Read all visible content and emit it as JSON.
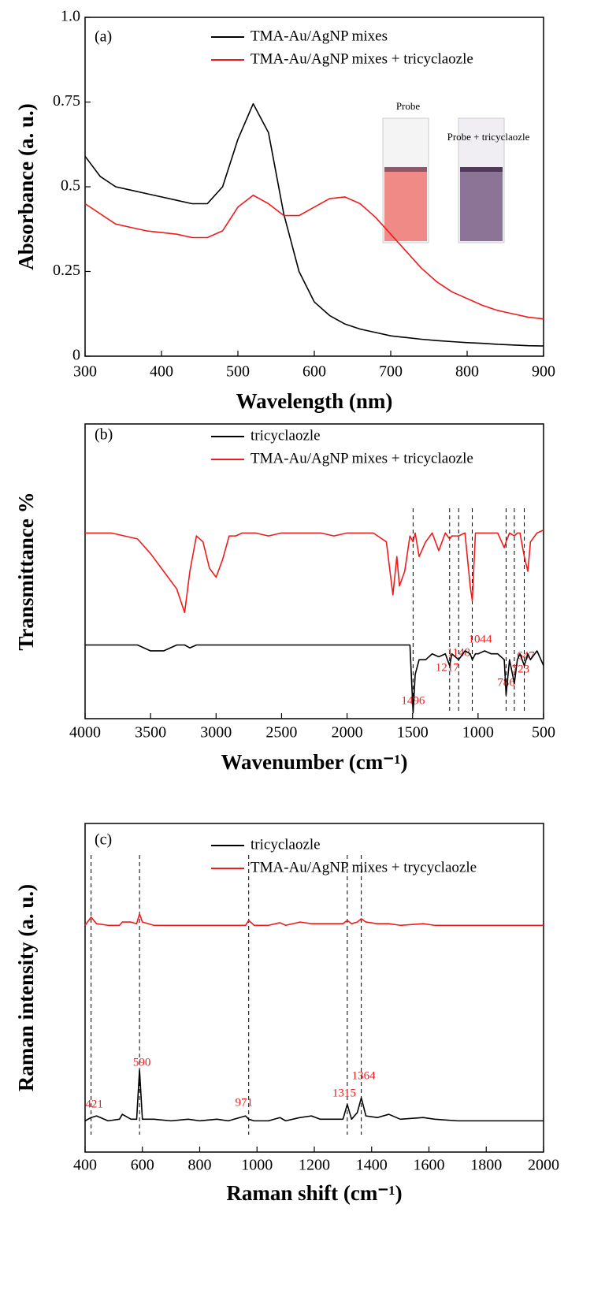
{
  "chart_data": [
    {
      "type": "line",
      "panel_label": "(a)",
      "xlabel": "Wavelength (nm)",
      "ylabel": "Absorbance (a. u.)",
      "inset_labels": [
        "Probe",
        "Probe + tricyclaozle"
      ],
      "xlim": [
        300,
        900
      ],
      "ylim": [
        0,
        1
      ],
      "xticks": [
        300,
        400,
        500,
        600,
        700,
        800,
        900
      ],
      "yticks": [
        0,
        0.25,
        0.5,
        0.75,
        {
          "value": 1,
          "label": "1.0"
        }
      ],
      "x": [
        300,
        320,
        340,
        360,
        380,
        400,
        420,
        440,
        460,
        480,
        500,
        520,
        540,
        560,
        580,
        600,
        620,
        640,
        660,
        680,
        700,
        720,
        740,
        760,
        780,
        800,
        820,
        840,
        860,
        880,
        900
      ],
      "series": [
        {
          "name": "TMA-Au/AgNP mixes",
          "color": "#000000",
          "values": [
            0.59,
            0.53,
            0.5,
            0.49,
            0.48,
            0.47,
            0.46,
            0.45,
            0.45,
            0.5,
            0.64,
            0.745,
            0.66,
            0.42,
            0.25,
            0.16,
            0.12,
            0.095,
            0.08,
            0.07,
            0.06,
            0.055,
            0.05,
            0.046,
            0.043,
            0.04,
            0.038,
            0.035,
            0.033,
            0.031,
            0.03
          ]
        },
        {
          "name": "TMA-Au/AgNP mixes + tricyclaozle",
          "color": "#ee1c1c",
          "values": [
            0.45,
            0.42,
            0.39,
            0.38,
            0.37,
            0.365,
            0.36,
            0.35,
            0.35,
            0.37,
            0.44,
            0.475,
            0.45,
            0.415,
            0.415,
            0.44,
            0.465,
            0.47,
            0.45,
            0.41,
            0.36,
            0.31,
            0.26,
            0.22,
            0.19,
            0.17,
            0.15,
            0.135,
            0.125,
            0.115,
            0.11
          ]
        }
      ]
    },
    {
      "type": "line",
      "panel_label": "(b)",
      "xlabel": "Wavenumber (cm⁻¹)",
      "ylabel": "Transmittance %",
      "xlim": [
        4000,
        500
      ],
      "ylim": [
        0,
        100
      ],
      "xticks": [
        4000,
        3500,
        3000,
        2500,
        2000,
        1500,
        1000,
        500
      ],
      "peaks": [
        1496,
        1217,
        1148,
        1044,
        786,
        723,
        647
      ],
      "peak_color": "#ee1c1c",
      "x": [
        4000,
        3800,
        3700,
        3600,
        3500,
        3400,
        3300,
        3240,
        3200,
        3150,
        3100,
        3050,
        3000,
        2950,
        2900,
        2850,
        2800,
        2700,
        2600,
        2500,
        2400,
        2300,
        2200,
        2100,
        2000,
        1900,
        1800,
        1700,
        1650,
        1620,
        1600,
        1560,
        1520,
        1496,
        1480,
        1450,
        1400,
        1350,
        1300,
        1250,
        1217,
        1200,
        1148,
        1100,
        1060,
        1044,
        1020,
        1000,
        950,
        900,
        850,
        800,
        786,
        760,
        723,
        700,
        680,
        647,
        620,
        600,
        550,
        500
      ],
      "series": [
        {
          "name": "tricyclaozle",
          "color": "#000000",
          "values": [
            25,
            25,
            25,
            25,
            23,
            23,
            25,
            25,
            24,
            25,
            25,
            25,
            25,
            25,
            25,
            25,
            25,
            25,
            25,
            25,
            25,
            25,
            25,
            25,
            25,
            25,
            25,
            25,
            25,
            25,
            25,
            25,
            25,
            2,
            15,
            20,
            20,
            22,
            21,
            22,
            18,
            22,
            20,
            23,
            22,
            20,
            22,
            22,
            23,
            22,
            22,
            20,
            8,
            20,
            12,
            20,
            22,
            18,
            22,
            20,
            23,
            18
          ]
        },
        {
          "name": "TMA-Au/AgNP mixes + tricyclaozle",
          "color": "#ee1c1c",
          "values": [
            63,
            63,
            62,
            61,
            56,
            50,
            44,
            36,
            50,
            62,
            60,
            51,
            48,
            54,
            62,
            62,
            63,
            63,
            62,
            63,
            63,
            63,
            63,
            62,
            63,
            63,
            63,
            60,
            42,
            55,
            45,
            50,
            62,
            60,
            63,
            55,
            60,
            63,
            57,
            63,
            61,
            62,
            62,
            63,
            45,
            40,
            63,
            63,
            63,
            63,
            63,
            58,
            60,
            63,
            62,
            63,
            63,
            55,
            50,
            60,
            63,
            64
          ]
        }
      ]
    },
    {
      "type": "line",
      "panel_label": "(c)",
      "xlabel": "Raman shift (cm⁻¹)",
      "ylabel": "Raman intensity (a. u.)",
      "xlim": [
        400,
        2000
      ],
      "ylim": [
        0,
        100
      ],
      "xticks": [
        400,
        600,
        800,
        1000,
        1200,
        1400,
        1600,
        1800,
        2000
      ],
      "peaks": [
        421,
        590,
        971,
        1315,
        1364
      ],
      "peak_color": "#ee1c1c",
      "x": [
        400,
        421,
        440,
        480,
        520,
        530,
        560,
        580,
        590,
        600,
        640,
        700,
        760,
        800,
        860,
        900,
        960,
        971,
        990,
        1040,
        1080,
        1100,
        1150,
        1190,
        1220,
        1260,
        1300,
        1315,
        1330,
        1350,
        1364,
        1380,
        1420,
        1460,
        1500,
        1580,
        1620,
        1700,
        1800,
        1900,
        2000
      ],
      "series": [
        {
          "name": "tricyclaozle",
          "color": "#000000",
          "values": [
            9.5,
            10.5,
            11,
            9.5,
            10,
            11.5,
            10,
            10,
            25,
            10,
            10,
            9.5,
            10,
            9.5,
            10,
            9.5,
            11,
            10,
            9.5,
            9.5,
            10.5,
            9.5,
            10.5,
            11,
            10,
            10,
            10,
            14.5,
            10,
            12,
            16.5,
            11,
            10.5,
            11.5,
            10,
            10.5,
            10,
            9.5,
            9.5,
            9.5,
            9.5
          ]
        },
        {
          "name": "TMA-Au/AgNP mixes + trycyclaozle",
          "color": "#ee1c1c",
          "values": [
            69,
            71.5,
            69.5,
            69,
            69,
            70,
            70,
            69.5,
            72.5,
            70,
            69,
            69,
            69,
            69,
            69,
            69,
            69,
            70.5,
            69,
            69,
            69.8,
            69,
            70,
            69.5,
            69.5,
            69.5,
            69.5,
            70.5,
            69.5,
            70,
            71,
            70,
            69.5,
            69.5,
            69,
            69.5,
            69,
            69,
            69,
            69,
            69
          ]
        }
      ]
    }
  ]
}
